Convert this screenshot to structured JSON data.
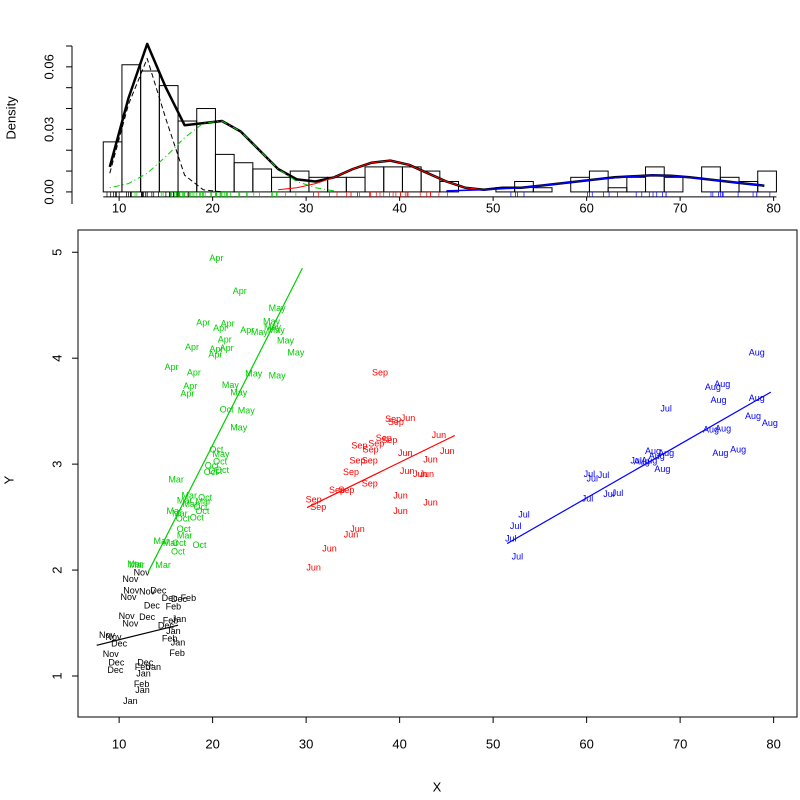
{
  "chart_data": [
    {
      "type": "histogram",
      "ylabel": "Density",
      "bins": [
        8.3,
        10.3,
        12.3,
        14.3,
        16.3,
        18.3,
        20.3,
        22.3,
        24.3,
        26.3,
        28.3,
        30.3,
        32.3,
        34.3,
        36.3,
        38.3,
        40.3,
        42.3,
        44.3,
        46.3,
        48.3,
        50.3,
        52.3,
        54.3,
        56.3,
        58.3,
        60.3,
        62.3,
        64.3,
        66.3,
        68.3,
        70.3,
        72.3,
        74.3,
        76.3,
        78.3,
        80.3
      ],
      "values": [
        0.024,
        0.061,
        0.058,
        0.051,
        0.034,
        0.04,
        0.018,
        0.014,
        0.011,
        0.007,
        0.01,
        0.007,
        0.007,
        0.007,
        0.012,
        0.012,
        0.012,
        0.01,
        0.005,
        0,
        0,
        0.002,
        0.005,
        0.002,
        0,
        0.007,
        0.01,
        0.002,
        0.007,
        0.012,
        0.007,
        0,
        0.012,
        0.007,
        0.005,
        0.01
      ],
      "color": "#000000",
      "xlim": [
        5.6,
        82.5
      ],
      "ylim": [
        -0.0058,
        0.07
      ],
      "xticks": [
        10,
        20,
        30,
        40,
        50,
        60,
        70,
        80
      ],
      "yticks": [
        {
          "value": 0,
          "label": "0.00"
        },
        {
          "value": 0.03,
          "label": "0.03"
        },
        {
          "value": 0.06,
          "label": "0.06"
        }
      ],
      "yminorticks": [
        0.01,
        0.02,
        0.04,
        0.05,
        0.07
      ],
      "rug": true,
      "curves": [
        {
          "color": "#000000",
          "dash": "solid",
          "width": 2.5,
          "x": [
            9,
            11,
            13,
            15,
            17,
            19,
            21,
            23,
            25,
            27,
            29,
            31,
            33,
            35,
            37,
            39,
            41,
            43,
            45,
            47,
            49,
            51,
            53,
            55,
            57,
            59,
            61,
            63,
            65,
            67,
            69,
            71,
            73,
            75,
            77,
            79
          ],
          "values": [
            0.012,
            0.045,
            0.071,
            0.05,
            0.032,
            0.033,
            0.034,
            0.029,
            0.02,
            0.011,
            0.006,
            0.005,
            0.007,
            0.011,
            0.014,
            0.015,
            0.013,
            0.009,
            0.005,
            0.002,
            0.001,
            0.002,
            0.002,
            0.003,
            0.004,
            0.005,
            0.006,
            0.007,
            0.0075,
            0.008,
            0.0078,
            0.007,
            0.006,
            0.005,
            0.004,
            0.003
          ]
        },
        {
          "color": "#000000",
          "dash": "dashed",
          "width": 1,
          "x": [
            9,
            11,
            13,
            15,
            17,
            19,
            21
          ],
          "values": [
            0.009,
            0.042,
            0.064,
            0.035,
            0.008,
            0.001,
            0
          ]
        },
        {
          "color": "#00cd00",
          "dash": "dotdash",
          "width": 1,
          "x": [
            9,
            11,
            13,
            15,
            17,
            19,
            21,
            23,
            25,
            27,
            29,
            31,
            33
          ],
          "values": [
            0.002,
            0.004,
            0.009,
            0.017,
            0.026,
            0.033,
            0.034,
            0.029,
            0.02,
            0.011,
            0.005,
            0.002,
            0.0005
          ]
        },
        {
          "color": "#ff0000",
          "dash": "solid",
          "width": 1,
          "x": [
            27,
            29,
            31,
            33,
            35,
            37,
            39,
            41,
            43,
            45,
            47,
            49
          ],
          "values": [
            0.001,
            0.002,
            0.004,
            0.007,
            0.011,
            0.014,
            0.015,
            0.013,
            0.009,
            0.005,
            0.002,
            0.001
          ]
        },
        {
          "color": "#0000ff",
          "dash": "solid",
          "width": 1.5,
          "x": [
            45,
            49,
            53,
            57,
            61,
            65,
            67,
            69,
            73,
            77,
            79
          ],
          "values": [
            0.0005,
            0.001,
            0.002,
            0.004,
            0.006,
            0.0075,
            0.008,
            0.0078,
            0.006,
            0.004,
            0.003
          ]
        }
      ]
    },
    {
      "type": "scatter",
      "xlabel": "X",
      "ylabel": "Y",
      "xlim": [
        5.6,
        82.5
      ],
      "ylim": [
        0.613,
        5.21
      ],
      "xticks": [
        10,
        20,
        30,
        40,
        50,
        60,
        70,
        80
      ],
      "yticks": [
        1,
        2,
        3,
        4,
        5
      ],
      "series": [
        {
          "color": "#000000",
          "labels": [
            "Nov",
            "Nov",
            "Nov",
            "Nov",
            "Dec",
            "Nov",
            "Dec",
            "Feb",
            "Dec",
            "Dec",
            "Feb",
            "Nov",
            "Dec",
            "Nov",
            "Feb",
            "Jan",
            "Dec",
            "Nov",
            "Nov",
            "Dec",
            "Nov",
            "Jan",
            "Jan",
            "Feb",
            "Feb",
            "Dec",
            "Dec",
            "Feb",
            "Jan",
            "Jan",
            "Feb",
            "Jan",
            "Jan",
            "Dec"
          ],
          "x": [
            11.2,
            12.4,
            11.3,
            13.0,
            14.2,
            11.0,
            15.4,
            17.4,
            16.4,
            13.5,
            15.8,
            10.8,
            13.0,
            11.2,
            15.5,
            16.4,
            15.0,
            8.7,
            9.4,
            10.0,
            9.1,
            15.8,
            16.3,
            15.4,
            16.2,
            9.7,
            12.8,
            12.5,
            13.7,
            12.6,
            12.4,
            12.5,
            11.2,
            9.6
          ],
          "y": [
            1.91,
            1.97,
            1.8,
            1.79,
            1.8,
            1.74,
            1.73,
            1.73,
            1.72,
            1.66,
            1.65,
            1.56,
            1.55,
            1.49,
            1.52,
            1.53,
            1.47,
            1.38,
            1.36,
            1.3,
            1.2,
            1.42,
            1.31,
            1.35,
            1.21,
            1.12,
            1.12,
            1.08,
            1.08,
            1.02,
            0.92,
            0.86,
            0.76,
            1.05
          ],
          "fit": {
            "x": [
              7.6,
              16.3
            ],
            "y": [
              1.29,
              1.48
            ]
          }
        },
        {
          "color": "#00cd00",
          "labels": [
            "Apr",
            "Apr",
            "May",
            "Apr",
            "Apr",
            "Apr",
            "May",
            "May",
            "Apr",
            "May",
            "May",
            "Apr",
            "Apr",
            "Apr",
            "Apr",
            "May",
            "Apr",
            "May",
            "Apr",
            "Apr",
            "Apr",
            "Apr",
            "May",
            "May",
            "May",
            "May",
            "Oct",
            "May",
            "May",
            "Oct",
            "Oct",
            "May",
            "Oct",
            "Oct",
            "Oct",
            "Oct",
            "Mar",
            "Mar",
            "Mar",
            "Mar",
            "Oct",
            "Oct",
            "Mar",
            "Mar",
            "Mar",
            "Oct",
            "Oct",
            "Oct",
            "Oct",
            "Mar",
            "Mar",
            "Mar",
            "Oct",
            "Oct",
            "Oct",
            "Mar",
            "Mar",
            "Mar"
          ],
          "x": [
            20.4,
            22.9,
            26.9,
            19.0,
            20.8,
            21.6,
            26.3,
            26.4,
            23.7,
            25.0,
            26.8,
            21.3,
            20.4,
            21.5,
            17.8,
            27.8,
            20.3,
            28.9,
            15.6,
            18.0,
            17.6,
            17.3,
            21.9,
            22.8,
            24.4,
            26.9,
            21.5,
            23.6,
            22.8,
            20.4,
            20.8,
            20.9,
            19.9,
            20.3,
            21.0,
            19.8,
            16.1,
            17.5,
            17.0,
            17.6,
            19.2,
            18.7,
            19.0,
            15.9,
            16.5,
            18.9,
            16.8,
            18.3,
            16.9,
            17.0,
            14.5,
            15.5,
            16.4,
            18.6,
            16.3,
            11.7,
            11.9,
            14.7
          ],
          "y": [
            4.94,
            4.63,
            4.47,
            4.33,
            4.28,
            4.32,
            4.34,
            4.29,
            4.26,
            4.24,
            4.26,
            4.17,
            4.08,
            4.09,
            4.1,
            4.16,
            4.03,
            4.05,
            3.91,
            3.86,
            3.73,
            3.66,
            3.74,
            3.67,
            3.85,
            3.83,
            3.51,
            3.5,
            3.34,
            3.13,
            3.02,
            3.09,
            2.98,
            2.93,
            2.94,
            2.92,
            2.85,
            2.7,
            2.65,
            2.62,
            2.68,
            2.59,
            2.64,
            2.55,
            2.53,
            2.55,
            2.48,
            2.49,
            2.38,
            2.32,
            2.27,
            2.25,
            2.25,
            2.23,
            2.17,
            2.05,
            2.04,
            2.04
          ],
          "fit": {
            "x": [
              13.1,
              29.6
            ],
            "y": [
              1.98,
              4.85
            ]
          }
        },
        {
          "color": "#ff0000",
          "labels": [
            "Sep",
            "Jun",
            "Sep",
            "Sep",
            "Sep",
            "Sep",
            "Jun",
            "Sep",
            "Sep",
            "Jun",
            "Jun",
            "Sep",
            "Jun",
            "Sep",
            "Sep",
            "Sep",
            "Jun",
            "Jun",
            "Jun",
            "Sep",
            "Sep",
            "Sep",
            "Jun",
            "Sep",
            "Sep",
            "Jun",
            "Jun",
            "Jun",
            "Jun",
            "Jun",
            "Jun"
          ],
          "x": [
            37.9,
            40.9,
            39.3,
            39.6,
            38.9,
            38.3,
            44.2,
            37.5,
            35.7,
            45.1,
            40.6,
            36.9,
            43.3,
            36.8,
            35.5,
            34.8,
            40.8,
            42.2,
            42.9,
            36.8,
            33.3,
            34.3,
            40.1,
            30.8,
            31.3,
            43.3,
            40.1,
            35.5,
            34.8,
            32.5,
            30.8
          ],
          "y": [
            3.86,
            3.43,
            3.42,
            3.39,
            3.22,
            3.24,
            3.27,
            3.19,
            3.17,
            3.12,
            3.1,
            3.13,
            3.04,
            3.03,
            3.03,
            2.92,
            2.93,
            2.9,
            2.9,
            2.81,
            2.75,
            2.75,
            2.7,
            2.66,
            2.59,
            2.63,
            2.55,
            2.38,
            2.33,
            2.2,
            2.02
          ],
          "fit": {
            "x": [
              30.1,
              45.9
            ],
            "y": [
              2.59,
              3.27
            ]
          }
        },
        {
          "color": "#0000ff",
          "labels": [
            "Aug",
            "Aug",
            "Aug",
            "Aug",
            "Aug",
            "Jul",
            "Aug",
            "Aug",
            "Aug",
            "Aug",
            "Aug",
            "Aug",
            "Aug",
            "Aug",
            "Aug",
            "Jul",
            "Aug",
            "Aug",
            "Aug",
            "Jul",
            "Jul",
            "Jul",
            "Jul",
            "Jul",
            "Jul",
            "Jul",
            "Jul",
            "Jul",
            "Jul"
          ],
          "x": [
            78.2,
            74.5,
            73.5,
            74.1,
            78.2,
            68.5,
            77.8,
            79.6,
            74.6,
            73.3,
            76.2,
            74.3,
            67.1,
            68.5,
            67.5,
            65.3,
            66.7,
            65.9,
            68.1,
            60.3,
            61.8,
            60.6,
            62.4,
            63.3,
            60.1,
            53.3,
            52.4,
            51.9,
            52.6
          ],
          "y": [
            4.05,
            3.75,
            3.72,
            3.6,
            3.62,
            3.52,
            3.45,
            3.38,
            3.33,
            3.32,
            3.13,
            3.1,
            3.12,
            3.1,
            3.07,
            3.03,
            3.03,
            3.02,
            2.95,
            2.9,
            2.89,
            2.86,
            2.71,
            2.72,
            2.67,
            2.52,
            2.41,
            2.29,
            2.12
          ],
          "fit": {
            "x": [
              51.5,
              79.7
            ],
            "y": [
              2.25,
              3.68
            ]
          }
        }
      ]
    }
  ]
}
